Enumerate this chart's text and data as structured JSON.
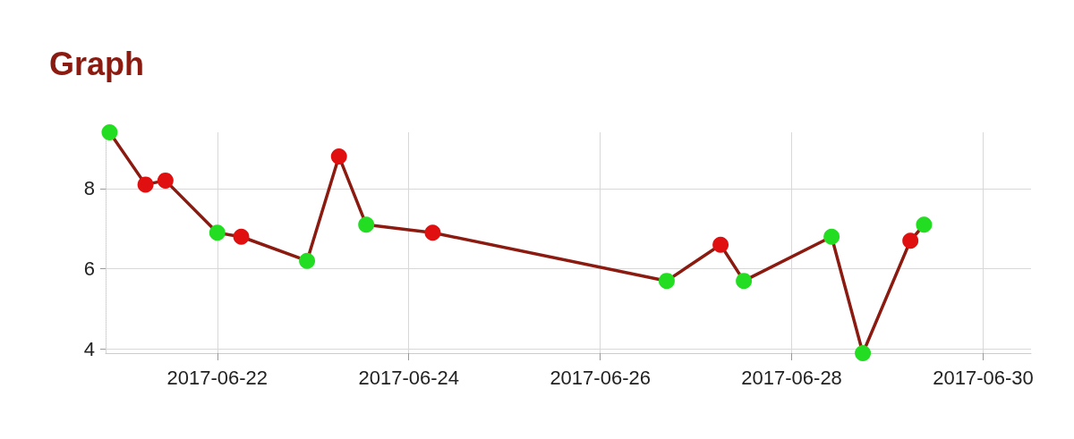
{
  "chart_data": {
    "type": "line",
    "title": "Graph",
    "x": [
      "2017-06-20T21:00",
      "2017-06-21T06:00",
      "2017-06-21T11:00",
      "2017-06-22T00:00",
      "2017-06-22T06:00",
      "2017-06-22T22:30",
      "2017-06-23T06:30",
      "2017-06-23T13:20",
      "2017-06-24T06:00",
      "2017-06-26T16:40",
      "2017-06-27T06:10",
      "2017-06-27T12:00",
      "2017-06-28T10:00",
      "2017-06-28T17:50",
      "2017-06-29T05:45",
      "2017-06-29T09:10"
    ],
    "series": [
      {
        "color": "#8b1a10",
        "values": [
          9.4,
          8.1,
          8.2,
          6.9,
          6.8,
          6.2,
          8.8,
          7.1,
          6.9,
          5.7,
          6.6,
          5.7,
          6.8,
          3.9,
          6.7,
          7.1
        ],
        "colors": [
          "#22dd22",
          "#e01010",
          "#e01010",
          "#22dd22",
          "#e01010",
          "#22dd22",
          "#e01010",
          "#22dd22",
          "#e01010",
          "#22dd22",
          "#e01010",
          "#22dd22",
          "#22dd22",
          "#22dd22",
          "#e01010",
          "#22dd22"
        ]
      }
    ],
    "xlim": [
      "2017-06-20T20:00",
      "2017-06-30T12:00"
    ],
    "xticks": [
      "2017-06-22",
      "2017-06-24",
      "2017-06-26",
      "2017-06-28",
      "2017-06-30"
    ],
    "ylim": [
      3.9,
      9.4
    ],
    "yticks": [
      4,
      6,
      8
    ],
    "grid": true,
    "marker": "circle",
    "line_style": "solid"
  }
}
